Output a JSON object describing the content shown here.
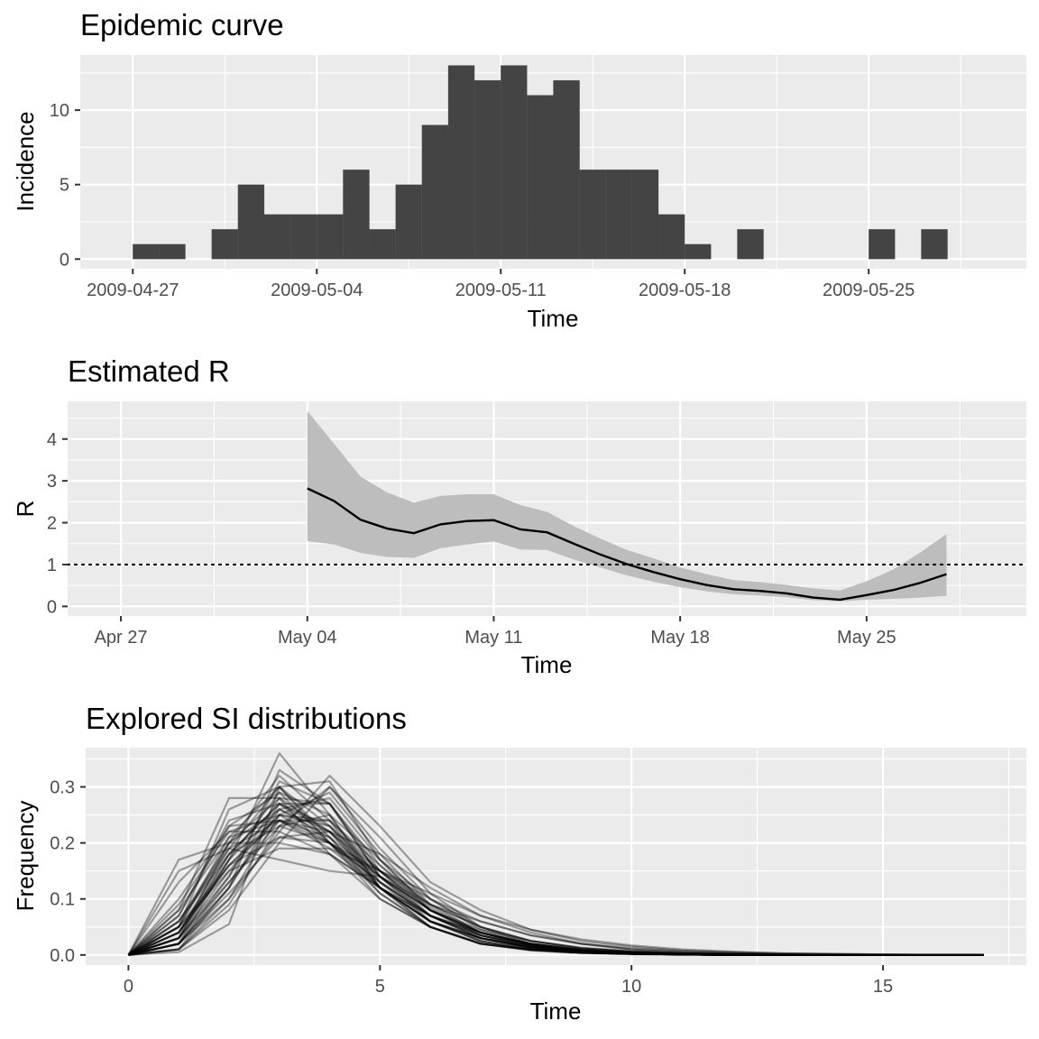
{
  "colors": {
    "panel": "#ebebeb",
    "grid": "#ffffff",
    "bar": "#444444",
    "ribbon": "#bdbdbd",
    "line": "#000000",
    "tick_text": "#4d4d4d",
    "tick_mark": "#333333"
  },
  "chart_data": [
    {
      "type": "bar",
      "title": "Epidemic curve",
      "xlabel": "Time",
      "ylabel": "Incidence",
      "x_axis_type": "date",
      "x": [
        "2009-04-27",
        "2009-04-28",
        "2009-04-29",
        "2009-04-30",
        "2009-05-01",
        "2009-05-02",
        "2009-05-03",
        "2009-05-04",
        "2009-05-05",
        "2009-05-06",
        "2009-05-07",
        "2009-05-08",
        "2009-05-09",
        "2009-05-10",
        "2009-05-11",
        "2009-05-12",
        "2009-05-13",
        "2009-05-14",
        "2009-05-15",
        "2009-05-16",
        "2009-05-17",
        "2009-05-18",
        "2009-05-19",
        "2009-05-20",
        "2009-05-21",
        "2009-05-22",
        "2009-05-23",
        "2009-05-24",
        "2009-05-25",
        "2009-05-26",
        "2009-05-27",
        "2009-05-28"
      ],
      "values": [
        1,
        1,
        0,
        2,
        5,
        3,
        3,
        3,
        6,
        2,
        5,
        9,
        13,
        12,
        13,
        11,
        12,
        6,
        6,
        6,
        3,
        1,
        0,
        2,
        0,
        0,
        0,
        0,
        2,
        0,
        2,
        0
      ],
      "xlim": [
        "2009-04-25",
        "2009-05-31"
      ],
      "ylim": [
        -0.65,
        13.7
      ],
      "x_ticks": [
        "2009-04-27",
        "2009-05-04",
        "2009-05-11",
        "2009-05-18",
        "2009-05-25"
      ],
      "x_tick_labels": [
        "2009-04-27",
        "2009-05-04",
        "2009-05-11",
        "2009-05-18",
        "2009-05-25"
      ],
      "y_ticks": [
        0,
        5,
        10
      ],
      "y_tick_labels": [
        "0",
        "5",
        "10"
      ],
      "grid": true,
      "legend": "none"
    },
    {
      "type": "line",
      "title": "Estimated R",
      "xlabel": "Time",
      "ylabel": "R",
      "x_axis_type": "date",
      "x": [
        "2009-05-04",
        "2009-05-05",
        "2009-05-06",
        "2009-05-07",
        "2009-05-08",
        "2009-05-09",
        "2009-05-10",
        "2009-05-11",
        "2009-05-12",
        "2009-05-13",
        "2009-05-14",
        "2009-05-15",
        "2009-05-16",
        "2009-05-17",
        "2009-05-18",
        "2009-05-19",
        "2009-05-20",
        "2009-05-21",
        "2009-05-22",
        "2009-05-23",
        "2009-05-24",
        "2009-05-25",
        "2009-05-26",
        "2009-05-27",
        "2009-05-28"
      ],
      "mean": [
        2.82,
        2.52,
        2.07,
        1.86,
        1.75,
        1.96,
        2.04,
        2.06,
        1.84,
        1.77,
        1.5,
        1.24,
        1.01,
        0.82,
        0.65,
        0.51,
        0.41,
        0.37,
        0.31,
        0.21,
        0.16,
        0.27,
        0.39,
        0.56,
        0.77
      ],
      "lower": [
        1.56,
        1.48,
        1.28,
        1.18,
        1.16,
        1.39,
        1.48,
        1.55,
        1.36,
        1.35,
        1.12,
        0.93,
        0.74,
        0.59,
        0.46,
        0.36,
        0.29,
        0.26,
        0.22,
        0.15,
        0.12,
        0.16,
        0.18,
        0.21,
        0.25
      ],
      "upper": [
        4.67,
        3.89,
        3.1,
        2.72,
        2.48,
        2.64,
        2.68,
        2.68,
        2.42,
        2.26,
        1.92,
        1.62,
        1.35,
        1.15,
        0.93,
        0.77,
        0.63,
        0.58,
        0.51,
        0.43,
        0.38,
        0.6,
        0.88,
        1.28,
        1.73
      ],
      "reference_line": 1,
      "xlim": [
        "2009-04-25",
        "2009-05-31"
      ],
      "ylim": [
        -0.23,
        4.9
      ],
      "x_ticks": [
        "2009-04-27",
        "2009-05-04",
        "2009-05-11",
        "2009-05-18",
        "2009-05-25"
      ],
      "x_tick_labels": [
        "Apr 27",
        "May 04",
        "May 11",
        "May 18",
        "May 25"
      ],
      "y_ticks": [
        0,
        1,
        2,
        3,
        4
      ],
      "y_tick_labels": [
        "0",
        "1",
        "2",
        "3",
        "4"
      ],
      "grid": true,
      "legend": "none"
    },
    {
      "type": "line",
      "title": "Explored SI distributions",
      "xlabel": "Time",
      "ylabel": "Frequency",
      "xlim": [
        -0.85,
        17.85
      ],
      "ylim": [
        -0.018,
        0.37
      ],
      "x_ticks": [
        0,
        5,
        10,
        15
      ],
      "x_tick_labels": [
        "0",
        "5",
        "10",
        "15"
      ],
      "y_ticks": [
        0,
        0.1,
        0.2,
        0.3
      ],
      "y_tick_labels": [
        "0.0",
        "0.1",
        "0.2",
        "0.3"
      ],
      "x": [
        0,
        1,
        2,
        3,
        4,
        5,
        6,
        7,
        8,
        9,
        10,
        11,
        12,
        13,
        14,
        15,
        16,
        17
      ],
      "series_opacity": 0.35,
      "series": [
        {
          "values": [
            0,
            0.005,
            0.055,
            0.3,
            0.31,
            0.17,
            0.085,
            0.04,
            0.018,
            0.008,
            0.004,
            0.002,
            0.001,
            0,
            0,
            0,
            0,
            0
          ]
        },
        {
          "values": [
            0,
            0.01,
            0.12,
            0.33,
            0.27,
            0.14,
            0.07,
            0.03,
            0.013,
            0.006,
            0.003,
            0.001,
            0,
            0,
            0,
            0,
            0,
            0
          ]
        },
        {
          "values": [
            0,
            0.02,
            0.17,
            0.36,
            0.25,
            0.12,
            0.05,
            0.02,
            0.008,
            0.003,
            0.001,
            0,
            0,
            0,
            0,
            0,
            0,
            0
          ]
        },
        {
          "values": [
            0,
            0.03,
            0.2,
            0.32,
            0.24,
            0.12,
            0.05,
            0.02,
            0.009,
            0.004,
            0.002,
            0.001,
            0,
            0,
            0,
            0,
            0,
            0
          ]
        },
        {
          "values": [
            0,
            0.05,
            0.26,
            0.3,
            0.2,
            0.1,
            0.05,
            0.02,
            0.01,
            0.005,
            0.002,
            0.001,
            0,
            0,
            0,
            0,
            0,
            0
          ]
        },
        {
          "values": [
            0,
            0.08,
            0.28,
            0.28,
            0.18,
            0.1,
            0.05,
            0.02,
            0.01,
            0.004,
            0.002,
            0.001,
            0,
            0,
            0,
            0,
            0,
            0
          ]
        },
        {
          "values": [
            0,
            0.1,
            0.23,
            0.24,
            0.19,
            0.12,
            0.06,
            0.03,
            0.015,
            0.007,
            0.003,
            0.001,
            0,
            0,
            0,
            0,
            0,
            0
          ]
        },
        {
          "values": [
            0,
            0.13,
            0.22,
            0.22,
            0.18,
            0.12,
            0.07,
            0.035,
            0.018,
            0.009,
            0.004,
            0.002,
            0.001,
            0,
            0,
            0,
            0,
            0
          ]
        },
        {
          "values": [
            0,
            0.17,
            0.2,
            0.2,
            0.18,
            0.12,
            0.07,
            0.04,
            0.02,
            0.01,
            0.005,
            0.002,
            0.001,
            0,
            0,
            0,
            0,
            0
          ]
        },
        {
          "values": [
            0,
            0.15,
            0.19,
            0.17,
            0.15,
            0.14,
            0.09,
            0.06,
            0.035,
            0.02,
            0.012,
            0.007,
            0.004,
            0.002,
            0.001,
            0,
            0,
            0
          ]
        },
        {
          "values": [
            0,
            0.02,
            0.1,
            0.22,
            0.32,
            0.23,
            0.13,
            0.08,
            0.045,
            0.025,
            0.015,
            0.008,
            0.005,
            0.003,
            0.002,
            0.001,
            0,
            0
          ]
        },
        {
          "values": [
            0,
            0.01,
            0.08,
            0.2,
            0.3,
            0.21,
            0.11,
            0.05,
            0.02,
            0.008,
            0.003,
            0.001,
            0,
            0,
            0,
            0,
            0,
            0
          ]
        },
        {
          "values": [
            0,
            0.04,
            0.18,
            0.27,
            0.22,
            0.13,
            0.07,
            0.03,
            0.014,
            0.006,
            0.003,
            0.001,
            0,
            0,
            0,
            0,
            0,
            0
          ]
        },
        {
          "values": [
            0,
            0.06,
            0.2,
            0.26,
            0.21,
            0.12,
            0.06,
            0.03,
            0.014,
            0.006,
            0.003,
            0.001,
            0,
            0,
            0,
            0,
            0,
            0
          ]
        },
        {
          "values": [
            0,
            0.03,
            0.15,
            0.25,
            0.23,
            0.15,
            0.08,
            0.04,
            0.02,
            0.009,
            0.004,
            0.002,
            0.001,
            0,
            0,
            0,
            0,
            0
          ]
        },
        {
          "values": [
            0,
            0.02,
            0.13,
            0.24,
            0.24,
            0.16,
            0.09,
            0.05,
            0.025,
            0.012,
            0.006,
            0.003,
            0.001,
            0,
            0,
            0,
            0,
            0
          ]
        },
        {
          "values": [
            0,
            0.07,
            0.24,
            0.27,
            0.2,
            0.12,
            0.06,
            0.03,
            0.013,
            0.006,
            0.002,
            0.001,
            0,
            0,
            0,
            0,
            0,
            0
          ]
        },
        {
          "values": [
            0,
            0.05,
            0.16,
            0.21,
            0.2,
            0.15,
            0.1,
            0.06,
            0.035,
            0.02,
            0.01,
            0.005,
            0.003,
            0.001,
            0,
            0,
            0,
            0
          ]
        },
        {
          "values": [
            0,
            0.09,
            0.22,
            0.25,
            0.2,
            0.13,
            0.07,
            0.035,
            0.017,
            0.008,
            0.004,
            0.002,
            0.001,
            0,
            0,
            0,
            0,
            0
          ]
        },
        {
          "values": [
            0,
            0.03,
            0.17,
            0.29,
            0.25,
            0.13,
            0.06,
            0.025,
            0.01,
            0.004,
            0.002,
            0.001,
            0,
            0,
            0,
            0,
            0,
            0
          ]
        },
        {
          "values": [
            0,
            0.02,
            0.12,
            0.26,
            0.28,
            0.17,
            0.08,
            0.035,
            0.014,
            0.006,
            0.002,
            0.001,
            0,
            0,
            0,
            0,
            0,
            0
          ]
        },
        {
          "values": [
            0,
            0.04,
            0.19,
            0.3,
            0.23,
            0.12,
            0.06,
            0.025,
            0.01,
            0.004,
            0.002,
            0.001,
            0,
            0,
            0,
            0,
            0,
            0
          ]
        },
        {
          "values": [
            0,
            0.06,
            0.18,
            0.23,
            0.2,
            0.14,
            0.08,
            0.045,
            0.025,
            0.013,
            0.007,
            0.003,
            0.002,
            0.001,
            0,
            0,
            0,
            0
          ]
        },
        {
          "values": [
            0,
            0.01,
            0.09,
            0.23,
            0.3,
            0.19,
            0.1,
            0.045,
            0.02,
            0.008,
            0.003,
            0.001,
            0,
            0,
            0,
            0,
            0,
            0
          ]
        },
        {
          "values": [
            0,
            0.08,
            0.21,
            0.24,
            0.2,
            0.13,
            0.07,
            0.04,
            0.02,
            0.009,
            0.004,
            0.002,
            0.001,
            0,
            0,
            0,
            0,
            0
          ]
        },
        {
          "values": [
            0,
            0.03,
            0.14,
            0.28,
            0.27,
            0.15,
            0.07,
            0.03,
            0.012,
            0.005,
            0.002,
            0.001,
            0,
            0,
            0,
            0,
            0,
            0
          ]
        },
        {
          "values": [
            0,
            0.05,
            0.2,
            0.28,
            0.22,
            0.12,
            0.06,
            0.03,
            0.013,
            0.006,
            0.002,
            0.001,
            0,
            0,
            0,
            0,
            0,
            0
          ]
        },
        {
          "values": [
            0,
            0.02,
            0.11,
            0.21,
            0.22,
            0.18,
            0.12,
            0.07,
            0.04,
            0.02,
            0.01,
            0.005,
            0.002,
            0.001,
            0,
            0,
            0,
            0
          ]
        },
        {
          "values": [
            0,
            0.04,
            0.16,
            0.25,
            0.24,
            0.15,
            0.08,
            0.04,
            0.018,
            0.008,
            0.004,
            0.002,
            0.001,
            0,
            0,
            0,
            0,
            0
          ]
        },
        {
          "values": [
            0,
            0.07,
            0.23,
            0.29,
            0.2,
            0.11,
            0.05,
            0.02,
            0.009,
            0.004,
            0.002,
            0.001,
            0,
            0,
            0,
            0,
            0,
            0
          ]
        },
        {
          "values": [
            0,
            0.02,
            0.14,
            0.31,
            0.27,
            0.14,
            0.06,
            0.025,
            0.01,
            0.004,
            0.002,
            0.001,
            0,
            0,
            0,
            0,
            0,
            0
          ]
        },
        {
          "values": [
            0,
            0.03,
            0.18,
            0.27,
            0.23,
            0.14,
            0.07,
            0.035,
            0.016,
            0.007,
            0.003,
            0.001,
            0,
            0,
            0,
            0,
            0,
            0
          ]
        },
        {
          "values": [
            0,
            0.05,
            0.15,
            0.19,
            0.19,
            0.15,
            0.11,
            0.07,
            0.045,
            0.028,
            0.017,
            0.01,
            0.006,
            0.003,
            0.002,
            0.001,
            0,
            0
          ]
        },
        {
          "values": [
            0,
            0.04,
            0.17,
            0.26,
            0.22,
            0.14,
            0.08,
            0.04,
            0.02,
            0.009,
            0.004,
            0.002,
            0.001,
            0,
            0,
            0,
            0,
            0
          ]
        },
        {
          "values": [
            0,
            0.01,
            0.1,
            0.25,
            0.29,
            0.18,
            0.09,
            0.04,
            0.017,
            0.007,
            0.003,
            0.001,
            0,
            0,
            0,
            0,
            0,
            0
          ]
        },
        {
          "values": [
            0,
            0.06,
            0.19,
            0.24,
            0.21,
            0.14,
            0.08,
            0.04,
            0.018,
            0.008,
            0.003,
            0.001,
            0,
            0,
            0,
            0,
            0,
            0
          ]
        },
        {
          "values": [
            0,
            0.03,
            0.13,
            0.23,
            0.25,
            0.17,
            0.1,
            0.05,
            0.025,
            0.012,
            0.006,
            0.003,
            0.001,
            0,
            0,
            0,
            0,
            0
          ]
        },
        {
          "values": [
            0,
            0.05,
            0.21,
            0.3,
            0.21,
            0.11,
            0.05,
            0.022,
            0.009,
            0.004,
            0.002,
            0.001,
            0,
            0,
            0,
            0,
            0,
            0
          ]
        },
        {
          "values": [
            0,
            0.02,
            0.12,
            0.27,
            0.27,
            0.16,
            0.08,
            0.035,
            0.015,
            0.006,
            0.002,
            0.001,
            0,
            0,
            0,
            0,
            0,
            0
          ]
        },
        {
          "values": [
            0,
            0.04,
            0.16,
            0.24,
            0.22,
            0.15,
            0.09,
            0.05,
            0.025,
            0.012,
            0.006,
            0.003,
            0.001,
            0,
            0,
            0,
            0,
            0
          ]
        }
      ],
      "grid": true,
      "legend": "none"
    }
  ]
}
